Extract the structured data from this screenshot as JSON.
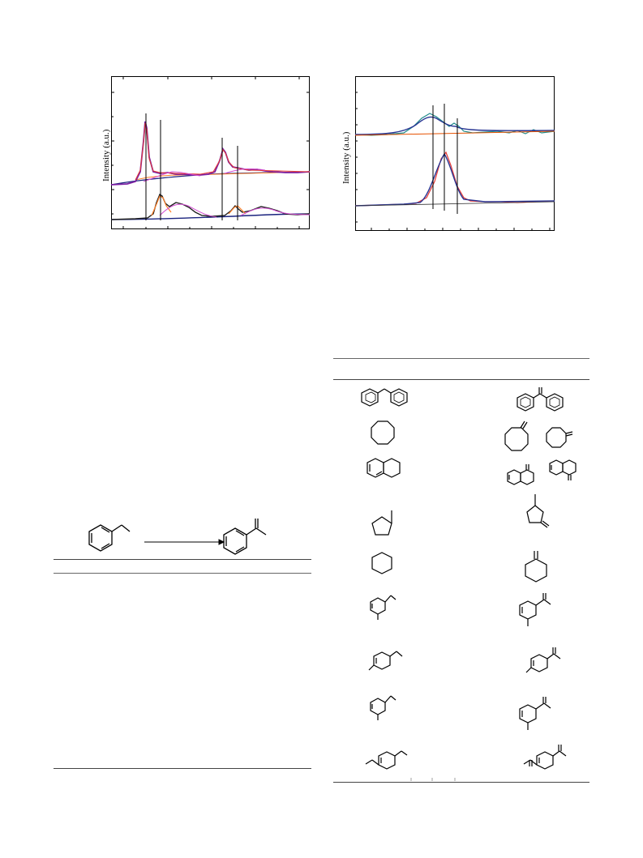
{
  "figure_left": {
    "ylabel": "Intensity (a.u.)",
    "colors": {
      "data_purple": "#7b1fa2",
      "data_black": "#202020",
      "fit_red": "#e53935",
      "fit_orange": "#ff7f27",
      "fit_blue": "#1a237e",
      "fit_pink": "#d24dd2"
    }
  },
  "figure_right": {
    "ylabel": "Intensity (a.u.)",
    "colors": {
      "data_teal": "#1f8a8a",
      "data_red": "#e53935",
      "fit_blue": "#283593",
      "fit_orange": "#e65100"
    }
  },
  "reaction": {
    "reactant_icon": "ethylbenzene-structure",
    "product_icon": "acetophenone-structure",
    "arrow_icon": "reaction-arrow-icon"
  },
  "table_right": {
    "rows": [
      {
        "substrate_icon": "diphenylmethane-structure",
        "product_icon": "benzophenone-structure"
      },
      {
        "substrate_icon": "cyclooctane-structure",
        "product_icon": "cyclooctanone-structure"
      },
      {
        "substrate_icon": "tetralin-structure",
        "product_icon": "tetralone-structure"
      },
      {
        "substrate_icon": "methylcyclopentane-structure",
        "product_icon": "methylcyclopentanone-structure"
      },
      {
        "substrate_icon": "cyclohexane-structure",
        "product_icon": "cyclohexanone-structure"
      },
      {
        "substrate_icon": "3-methylethylbenzene-structure",
        "product_icon": "3-methylacetophenone-structure"
      },
      {
        "substrate_icon": "4-methylethylbenzene-structure",
        "product_icon": "4-methylacetophenone-structure"
      },
      {
        "substrate_icon": "2-methylethylbenzene-structure",
        "product_icon": "2-methylacetophenone-structure"
      },
      {
        "substrate_icon": "diethylbenzene-structure",
        "product_icon": "diacetylbenzene-structure"
      }
    ]
  }
}
